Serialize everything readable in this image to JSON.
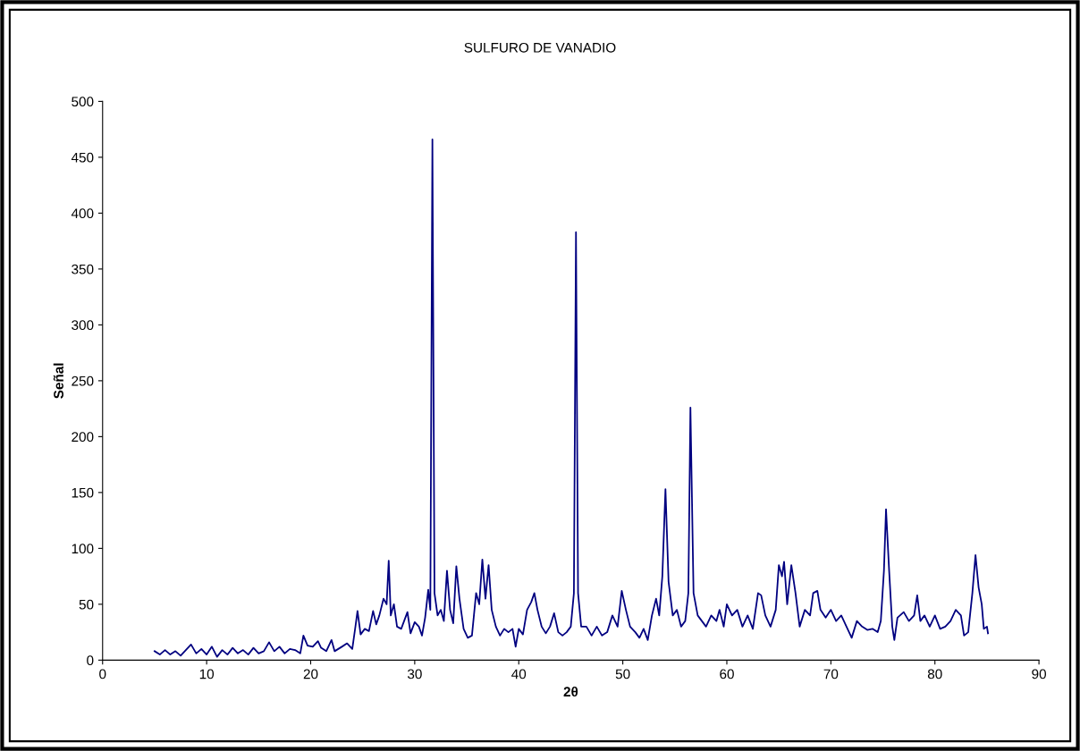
{
  "chart_data": {
    "type": "line",
    "title": "SULFURO DE VANADIO",
    "xlabel": "2θ",
    "ylabel": "Señal",
    "xlim": [
      0,
      90
    ],
    "xticks": [
      0,
      10,
      20,
      30,
      40,
      50,
      60,
      70,
      80,
      90
    ],
    "ylim": [
      0,
      500
    ],
    "yticks": [
      0,
      50,
      100,
      150,
      200,
      250,
      300,
      350,
      400,
      450,
      500
    ],
    "grid": false,
    "legend": false,
    "marker": "none",
    "line_style": "solid",
    "series": [
      {
        "color": "#000080",
        "x": [
          5.0,
          5.5,
          6,
          6.5,
          7,
          7.5,
          8,
          8.5,
          9,
          9.5,
          10,
          10.5,
          11,
          11.5,
          12,
          12.5,
          13,
          13.5,
          14,
          14.5,
          15,
          15.5,
          16,
          16.5,
          17,
          17.5,
          18,
          18.5,
          19,
          19.3,
          19.7,
          20.2,
          20.7,
          21,
          21.5,
          22,
          22.3,
          23,
          23.5,
          24,
          24.3,
          24.5,
          24.8,
          25.2,
          25.6,
          26,
          26.3,
          26.6,
          27,
          27.3,
          27.5,
          27.7,
          28,
          28.3,
          28.7,
          29.3,
          29.6,
          30,
          30.4,
          30.7,
          31,
          31.3,
          31.5,
          31.7,
          31.9,
          32.2,
          32.5,
          32.8,
          33.1,
          33.4,
          33.7,
          34.0,
          34.3,
          34.7,
          35.1,
          35.5,
          35.9,
          36.2,
          36.5,
          36.8,
          37.1,
          37.4,
          37.8,
          38.2,
          38.6,
          39,
          39.4,
          39.7,
          40,
          40.4,
          40.8,
          41.2,
          41.5,
          41.8,
          42.2,
          42.6,
          43,
          43.4,
          43.8,
          44.2,
          44.6,
          45,
          45.3,
          45.5,
          45.7,
          46,
          46.5,
          47,
          47.5,
          48,
          48.5,
          49,
          49.5,
          49.9,
          50.3,
          50.7,
          51.2,
          51.6,
          52,
          52.4,
          52.8,
          53.2,
          53.5,
          53.8,
          54.1,
          54.4,
          54.8,
          55.2,
          55.6,
          56,
          56.3,
          56.5,
          56.8,
          57.2,
          57.6,
          58,
          58.5,
          59,
          59.3,
          59.7,
          60,
          60.5,
          61,
          61.5,
          62,
          62.5,
          63,
          63.3,
          63.7,
          64.2,
          64.7,
          65,
          65.3,
          65.5,
          65.8,
          66.2,
          66.6,
          67,
          67.5,
          68,
          68.3,
          68.7,
          69,
          69.5,
          70,
          70.5,
          71,
          71.5,
          72,
          72.5,
          73,
          73.5,
          74,
          74.5,
          74.8,
          75.1,
          75.3,
          75.6,
          75.9,
          76.1,
          76.4,
          77,
          77.5,
          78,
          78.3,
          78.6,
          79,
          79.5,
          80,
          80.5,
          81,
          81.5,
          82,
          82.5,
          82.8,
          83.2,
          83.6,
          83.9,
          84.2,
          84.5,
          84.7,
          85,
          85.1
        ],
        "values": [
          8,
          5,
          9,
          5,
          8,
          4,
          9,
          14,
          6,
          10,
          5,
          12,
          3,
          9,
          5,
          11,
          6,
          9,
          5,
          11,
          6,
          8,
          16,
          8,
          12,
          6,
          10,
          9,
          6,
          22,
          13,
          12,
          17,
          11,
          8,
          18,
          8,
          12,
          15,
          10,
          30,
          44,
          23,
          28,
          26,
          44,
          32,
          40,
          55,
          50,
          89,
          40,
          50,
          30,
          28,
          43,
          24,
          34,
          30,
          22,
          38,
          63,
          45,
          466,
          60,
          40,
          45,
          35,
          80,
          45,
          33,
          84,
          55,
          28,
          20,
          22,
          60,
          50,
          90,
          55,
          85,
          45,
          30,
          22,
          28,
          25,
          28,
          12,
          28,
          23,
          45,
          52,
          60,
          45,
          30,
          24,
          30,
          42,
          25,
          22,
          25,
          30,
          60,
          383,
          60,
          30,
          30,
          22,
          30,
          22,
          25,
          40,
          30,
          62,
          45,
          30,
          25,
          20,
          28,
          18,
          40,
          55,
          40,
          75,
          153,
          70,
          40,
          45,
          30,
          35,
          60,
          226,
          60,
          40,
          35,
          30,
          40,
          35,
          45,
          30,
          50,
          40,
          45,
          30,
          40,
          28,
          60,
          58,
          40,
          30,
          45,
          85,
          75,
          88,
          50,
          85,
          60,
          30,
          45,
          40,
          60,
          62,
          45,
          38,
          45,
          35,
          40,
          30,
          20,
          35,
          30,
          27,
          28,
          25,
          35,
          80,
          135,
          80,
          30,
          18,
          38,
          43,
          35,
          40,
          58,
          35,
          40,
          30,
          40,
          28,
          30,
          35,
          45,
          40,
          22,
          25,
          60,
          94,
          65,
          50,
          28,
          30,
          24
        ]
      }
    ]
  }
}
